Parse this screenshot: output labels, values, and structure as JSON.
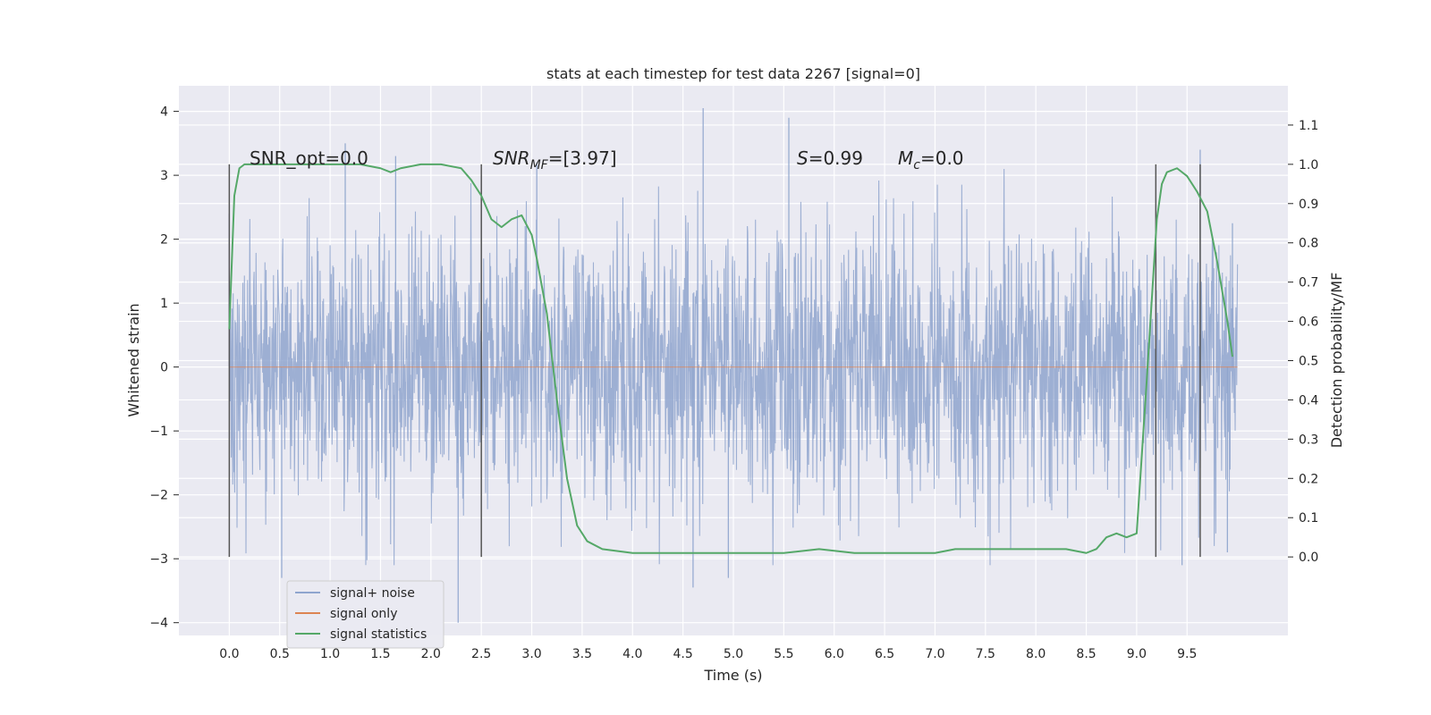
{
  "chart_data": {
    "type": "line",
    "title": "stats at each timestep for test data 2267 [signal=0]",
    "xlabel": "Time (s)",
    "ylabel": "Whitened strain",
    "ylabel_right": "Detection probability/MF",
    "xlim": [
      -0.5,
      10.5
    ],
    "ylim": [
      -4.2,
      4.4
    ],
    "ylim_right": [
      -0.2,
      1.2
    ],
    "x_ticks": [
      "0.0",
      "0.5",
      "1.0",
      "1.5",
      "2.0",
      "2.5",
      "3.0",
      "3.5",
      "4.0",
      "4.5",
      "5.0",
      "5.5",
      "6.0",
      "6.5",
      "7.0",
      "7.5",
      "8.0",
      "8.5",
      "9.0",
      "9.5"
    ],
    "y_ticks": [
      "4",
      "3",
      "2",
      "1",
      "0",
      "−1",
      "−2",
      "−3",
      "−4"
    ],
    "y_ticks_right": [
      "1.1",
      "1.0",
      "0.9",
      "0.8",
      "0.7",
      "0.6",
      "0.5",
      "0.4",
      "0.3",
      "0.2",
      "0.1",
      "0.0"
    ],
    "grid": true,
    "legend_position": "lower-left",
    "annotations": {
      "snr_opt": "SNR_opt=0.0",
      "snr_mf_main": "SNR",
      "snr_mf_sub": "MF",
      "snr_mf_value": "=[3.97]",
      "s_var": "S",
      "s_value": "=0.99",
      "mc_var": "M",
      "mc_sub": "c",
      "mc_value": "=0.0"
    },
    "vertical_markers_x": [
      0.0,
      2.5,
      9.19,
      9.63
    ],
    "series": [
      {
        "name": "signal+ noise",
        "axis": "left",
        "color": "#8fa5ce",
        "x_range": [
          0.0,
          10.0
        ],
        "envelope_peaks": [
          {
            "x": 0.0,
            "y": 2.4
          },
          {
            "x": 1.15,
            "y": 3.5
          },
          {
            "x": 1.65,
            "y": 3.3
          },
          {
            "x": 2.5,
            "y": 3.0
          },
          {
            "x": 3.05,
            "y": 3.2
          },
          {
            "x": 4.7,
            "y": 4.05
          },
          {
            "x": 5.55,
            "y": 3.9
          },
          {
            "x": 9.63,
            "y": 3.4
          },
          {
            "x": 9.95,
            "y": 2.25
          },
          {
            "x": 0.52,
            "y": -3.3
          },
          {
            "x": 2.27,
            "y": -4.0
          },
          {
            "x": 4.6,
            "y": -3.45
          },
          {
            "x": 4.95,
            "y": -3.3
          },
          {
            "x": 9.45,
            "y": -3.1
          },
          {
            "x": 9.9,
            "y": -2.9
          }
        ]
      },
      {
        "name": "signal only",
        "axis": "left",
        "color": "#dd8452",
        "x": [
          0.0,
          10.0
        ],
        "y": [
          0.0,
          0.0
        ]
      },
      {
        "name": "signal statistics",
        "axis": "right",
        "color": "#55a868",
        "x": [
          0.0,
          0.05,
          0.1,
          0.15,
          0.3,
          0.6,
          1.0,
          1.3,
          1.5,
          1.6,
          1.7,
          1.9,
          2.1,
          2.3,
          2.4,
          2.5,
          2.6,
          2.7,
          2.8,
          2.9,
          3.0,
          3.05,
          3.15,
          3.25,
          3.35,
          3.45,
          3.55,
          3.7,
          4.0,
          4.5,
          5.0,
          5.5,
          5.85,
          6.2,
          6.5,
          6.8,
          7.0,
          7.2,
          7.4,
          7.6,
          8.0,
          8.3,
          8.5,
          8.6,
          8.7,
          8.8,
          8.9,
          9.0,
          9.1,
          9.2,
          9.25,
          9.3,
          9.4,
          9.5,
          9.6,
          9.7,
          9.8,
          9.9,
          9.95
        ],
        "y": [
          0.58,
          0.92,
          0.99,
          1.0,
          1.0,
          1.0,
          1.0,
          1.0,
          0.99,
          0.98,
          0.99,
          1.0,
          1.0,
          0.99,
          0.96,
          0.92,
          0.86,
          0.84,
          0.86,
          0.87,
          0.82,
          0.76,
          0.62,
          0.4,
          0.2,
          0.08,
          0.04,
          0.02,
          0.01,
          0.01,
          0.01,
          0.01,
          0.02,
          0.01,
          0.01,
          0.01,
          0.01,
          0.02,
          0.02,
          0.02,
          0.02,
          0.02,
          0.01,
          0.02,
          0.05,
          0.06,
          0.05,
          0.06,
          0.45,
          0.86,
          0.95,
          0.98,
          0.99,
          0.97,
          0.93,
          0.88,
          0.75,
          0.6,
          0.51
        ]
      }
    ]
  }
}
